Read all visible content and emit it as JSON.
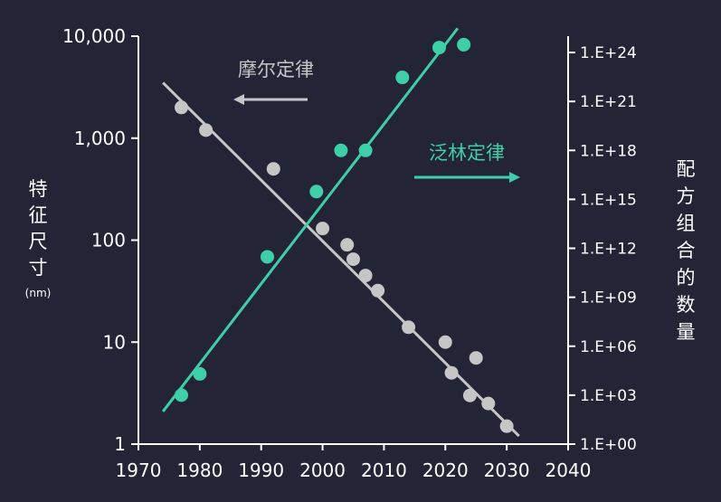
{
  "chart_data": {
    "type": "scatter",
    "xlim": [
      1970,
      2040
    ],
    "x_ticks": [
      "1970",
      "1980",
      "1990",
      "2000",
      "2010",
      "2020",
      "2030",
      "2040"
    ],
    "left_axis": {
      "label": "特征尺寸",
      "unit": "(nm)",
      "scale": "log",
      "ylim": [
        1,
        10000
      ],
      "ticks": [
        {
          "value": 1,
          "label": "1"
        },
        {
          "value": 10,
          "label": "10"
        },
        {
          "value": 100,
          "label": "100"
        },
        {
          "value": 1000,
          "label": "1,000"
        },
        {
          "value": 10000,
          "label": "10,000"
        }
      ]
    },
    "right_axis": {
      "label": "配方组合的数量",
      "scale": "log",
      "ylim": [
        1,
        1e+25
      ],
      "ticks": [
        {
          "exp": 0,
          "label": "1.E+00"
        },
        {
          "exp": 3,
          "label": "1.E+03"
        },
        {
          "exp": 6,
          "label": "1.E+06"
        },
        {
          "exp": 9,
          "label": "1.E+09"
        },
        {
          "exp": 12,
          "label": "1.E+12"
        },
        {
          "exp": 15,
          "label": "1.E+15"
        },
        {
          "exp": 18,
          "label": "1.E+18"
        },
        {
          "exp": 21,
          "label": "1.E+21"
        },
        {
          "exp": 24,
          "label": "1.E+24"
        }
      ]
    },
    "series": [
      {
        "name": "摩尔定律",
        "axis": "left",
        "color": "#c6c6c6",
        "points": [
          [
            1977,
            2000
          ],
          [
            1981,
            1200
          ],
          [
            1992,
            500
          ],
          [
            2000,
            130
          ],
          [
            2004,
            90
          ],
          [
            2005,
            65
          ],
          [
            2007,
            45
          ],
          [
            2009,
            32
          ],
          [
            2014,
            14
          ],
          [
            2020,
            10
          ],
          [
            2021,
            5
          ],
          [
            2025,
            7
          ],
          [
            2024,
            3
          ],
          [
            2027,
            2.5
          ],
          [
            2030,
            1.5
          ]
        ],
        "trend": [
          [
            1974,
            3500
          ],
          [
            2032,
            1.2
          ]
        ],
        "arrow_direction": "left"
      },
      {
        "name": "泛林定律",
        "axis": "right",
        "color": "#3fcfa8",
        "points": [
          [
            1977,
            1000
          ],
          [
            1980,
            20000
          ],
          [
            1991,
            300000000000.0
          ],
          [
            1999,
            3000000000000000.0
          ],
          [
            2003,
            1e+18
          ],
          [
            2007,
            1e+18
          ],
          [
            2013,
            3e+22
          ],
          [
            2019,
            2e+24
          ],
          [
            2023,
            3e+24
          ]
        ],
        "trend": [
          [
            1974,
            100
          ],
          [
            2022,
            3e+25
          ]
        ],
        "arrow_direction": "right"
      }
    ],
    "colors": {
      "background": "#232536",
      "axis": "#ffffff",
      "moore": "#c6c6c6",
      "lam": "#3fcfa8"
    }
  }
}
